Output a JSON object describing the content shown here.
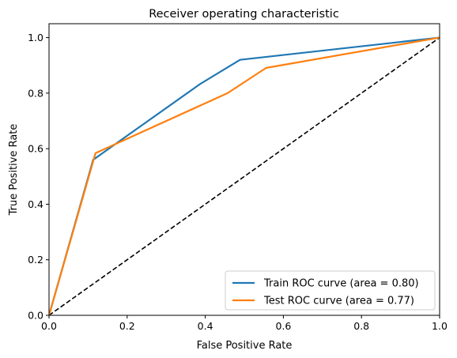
{
  "chart_data": {
    "type": "line",
    "title": "Receiver operating characteristic",
    "xlabel": "False Positive Rate",
    "ylabel": "True Positive Rate",
    "xlim": [
      0.0,
      1.0
    ],
    "ylim": [
      0.0,
      1.05
    ],
    "x_ticks": [
      0.0,
      0.2,
      0.4,
      0.6,
      0.8,
      1.0
    ],
    "y_ticks": [
      0.0,
      0.2,
      0.4,
      0.6,
      0.8,
      1.0
    ],
    "x_tick_labels": [
      "0.0",
      "0.2",
      "0.4",
      "0.6",
      "0.8",
      "1.0"
    ],
    "y_tick_labels": [
      "0.0",
      "0.2",
      "0.4",
      "0.6",
      "0.8",
      "1.0"
    ],
    "grid": false,
    "legend_position": "lower-right",
    "series": [
      {
        "name": "Train ROC curve (area = 0.80)",
        "color": "#1f77b4",
        "style": "solid",
        "x": [
          0.0,
          0.113,
          0.387,
          0.489,
          1.0
        ],
        "y": [
          0.0,
          0.56,
          0.833,
          0.92,
          1.0
        ]
      },
      {
        "name": "Test ROC curve (area = 0.77)",
        "color": "#ff7f0e",
        "style": "solid",
        "x": [
          0.0,
          0.119,
          0.457,
          0.556,
          1.0
        ],
        "y": [
          0.0,
          0.584,
          0.8,
          0.891,
          1.0
        ]
      },
      {
        "color": "#000000",
        "style": "dashed",
        "x": [
          0.0,
          1.0
        ],
        "y": [
          0.0,
          1.0
        ]
      }
    ]
  }
}
